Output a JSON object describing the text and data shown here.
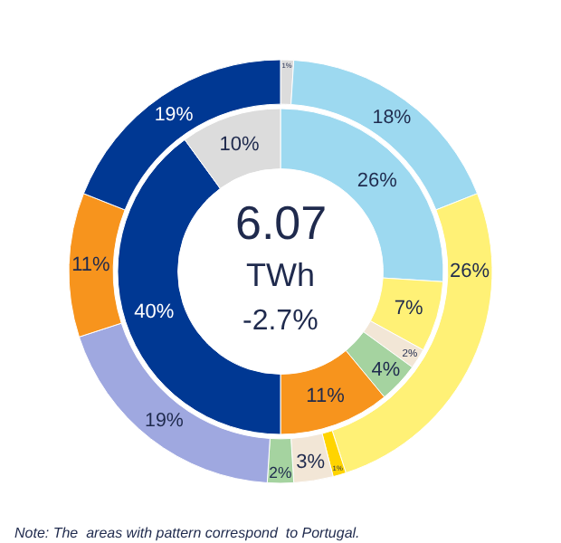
{
  "chart_data": {
    "type": "donut",
    "legend": false,
    "series": [
      {
        "values": [
          1,
          18,
          26,
          1,
          3,
          2,
          19,
          11,
          19
        ],
        "colors": [
          "#dcdcdc",
          "#9dd9f0",
          "#fff176",
          "#ffd400",
          "#f2e6d6",
          "#a5d3a0",
          "#9fa8e0",
          "#f7941d",
          "#003893"
        ],
        "value_labels": [
          "1%",
          "18%",
          "26%",
          "1%",
          "3%",
          "2%",
          "19%",
          "11%",
          "19%"
        ]
      },
      {
        "values": [
          26,
          7,
          2,
          4,
          11,
          40,
          10
        ],
        "colors": [
          "#9dd9f0",
          "#fff176",
          "#f2e6d6",
          "#a5d3a0",
          "#f7941d",
          "#003893",
          "#dcdcdc"
        ],
        "value_labels": [
          "26%",
          "7%",
          "2%",
          "4%",
          "11%",
          "40%",
          "10%"
        ]
      }
    ],
    "annotations": [
      "6.07",
      "TWh",
      "-2.7%",
      "Note: The  areas with pattern correspond  to Portugal."
    ]
  }
}
